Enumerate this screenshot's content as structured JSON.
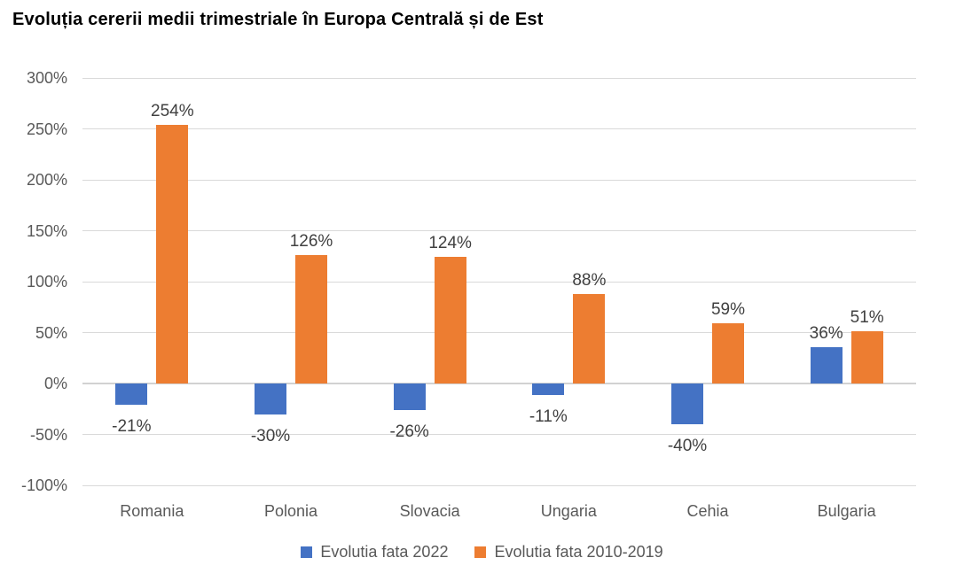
{
  "chart_data": {
    "type": "bar",
    "title": "Evoluția cererii medii trimestriale în Europa Centrală și de Est",
    "categories": [
      "Romania",
      "Polonia",
      "Slovacia",
      "Ungaria",
      "Cehia",
      "Bulgaria"
    ],
    "series": [
      {
        "name": "Evolutia fata 2022",
        "color": "#4472C4",
        "values": [
          -21,
          -30,
          -26,
          -11,
          -40,
          36
        ],
        "labels": [
          "-21%",
          "-30%",
          "-26%",
          "-11%",
          "-40%",
          "36%"
        ]
      },
      {
        "name": "Evolutia fata 2010-2019",
        "color": "#ED7D31",
        "values": [
          254,
          126,
          124,
          88,
          59,
          51
        ],
        "labels": [
          "254%",
          "126%",
          "124%",
          "88%",
          "59%",
          "51%"
        ]
      }
    ],
    "xlabel": "",
    "ylabel": "",
    "ylim": [
      -100,
      300
    ],
    "yticks": [
      "300%",
      "250%",
      "200%",
      "150%",
      "100%",
      "50%",
      "0%",
      "-50%",
      "-100%"
    ],
    "grid": true,
    "legend_position": "bottom",
    "colors": {
      "gridline": "#D9D9D9",
      "axis_text": "#595959",
      "data_label": "#404040",
      "title_text": "#000000"
    }
  }
}
